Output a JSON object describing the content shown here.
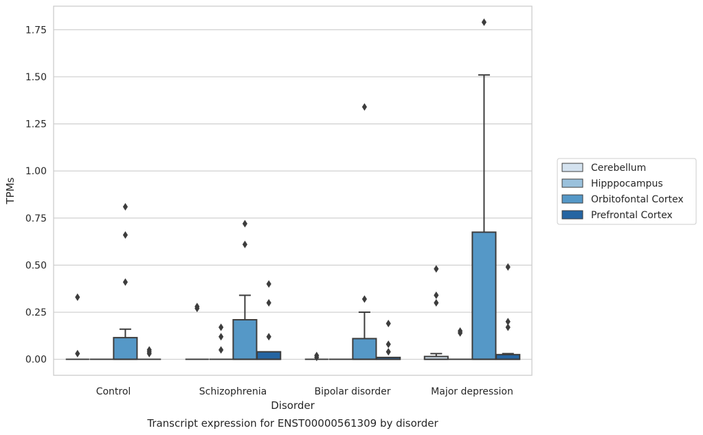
{
  "chart_data": {
    "type": "boxplot",
    "title": "",
    "caption": "Transcript expression for ENST00000561309 by disorder",
    "xlabel": "Disorder",
    "ylabel": "TPMs",
    "ylim": [
      -0.085,
      1.875
    ],
    "yticks": [
      0.0,
      0.25,
      0.5,
      0.75,
      1.0,
      1.25,
      1.5,
      1.75
    ],
    "ytick_labels": [
      "0.00",
      "0.25",
      "0.50",
      "0.75",
      "1.00",
      "1.25",
      "1.50",
      "1.75"
    ],
    "grid": "horizontal",
    "legend_position": "right",
    "categories": [
      "Control",
      "Schizophrenia",
      "Bipolar disorder",
      "Major depression"
    ],
    "series": [
      {
        "name": "Cerebellum",
        "color": "#d4e2ef",
        "boxes": [
          {
            "q1": 0,
            "median": 0,
            "q3": 0,
            "whislo": 0,
            "whishi": 0,
            "fliers": [
              0.33,
              0.03
            ]
          },
          {
            "q1": 0,
            "median": 0,
            "q3": 0,
            "whislo": 0,
            "whishi": 0,
            "fliers": [
              0.28,
              0.27
            ]
          },
          {
            "q1": 0,
            "median": 0,
            "q3": 0,
            "whislo": 0,
            "whishi": 0,
            "fliers": [
              0.02,
              0.01
            ]
          },
          {
            "q1": 0,
            "median": 0,
            "q3": 0.015,
            "whislo": 0,
            "whishi": 0.03,
            "fliers": [
              0.48,
              0.34,
              0.3
            ]
          }
        ]
      },
      {
        "name": "Hipppocampus",
        "color": "#9ac1dc",
        "boxes": [
          {
            "q1": 0,
            "median": 0,
            "q3": 0,
            "whislo": 0,
            "whishi": 0,
            "fliers": []
          },
          {
            "q1": 0,
            "median": 0,
            "q3": 0,
            "whislo": 0,
            "whishi": 0,
            "fliers": [
              0.17,
              0.12,
              0.05
            ]
          },
          {
            "q1": 0,
            "median": 0,
            "q3": 0,
            "whislo": 0,
            "whishi": 0,
            "fliers": []
          },
          {
            "q1": 0,
            "median": 0,
            "q3": 0,
            "whislo": 0,
            "whishi": 0,
            "fliers": [
              0.15,
              0.14
            ]
          }
        ]
      },
      {
        "name": "Orbitofontal Cortex",
        "color": "#5598c7",
        "boxes": [
          {
            "q1": 0,
            "median": 0,
            "q3": 0.115,
            "whislo": 0,
            "whishi": 0.16,
            "fliers": [
              0.81,
              0.66,
              0.41
            ]
          },
          {
            "q1": 0,
            "median": 0,
            "q3": 0.21,
            "whislo": 0,
            "whishi": 0.34,
            "fliers": [
              0.72,
              0.61
            ]
          },
          {
            "q1": 0,
            "median": 0,
            "q3": 0.11,
            "whislo": 0,
            "whishi": 0.25,
            "fliers": [
              1.34,
              0.32
            ]
          },
          {
            "q1": 0,
            "median": 0,
            "q3": 0.675,
            "whislo": 0,
            "whishi": 1.51,
            "fliers": [
              1.79
            ]
          }
        ]
      },
      {
        "name": "Prefrontal Cortex",
        "color": "#2565a2",
        "boxes": [
          {
            "q1": 0,
            "median": 0,
            "q3": 0,
            "whislo": 0,
            "whishi": 0,
            "fliers": [
              0.05,
              0.04,
              0.03
            ]
          },
          {
            "q1": 0,
            "median": 0,
            "q3": 0.04,
            "whislo": 0,
            "whishi": 0.04,
            "fliers": [
              0.4,
              0.3,
              0.12
            ]
          },
          {
            "q1": 0,
            "median": 0,
            "q3": 0.01,
            "whislo": 0,
            "whishi": 0.01,
            "fliers": [
              0.19,
              0.08,
              0.04
            ]
          },
          {
            "q1": 0,
            "median": 0,
            "q3": 0.025,
            "whislo": 0,
            "whishi": 0.03,
            "fliers": [
              0.49,
              0.2,
              0.17
            ]
          }
        ]
      }
    ]
  }
}
